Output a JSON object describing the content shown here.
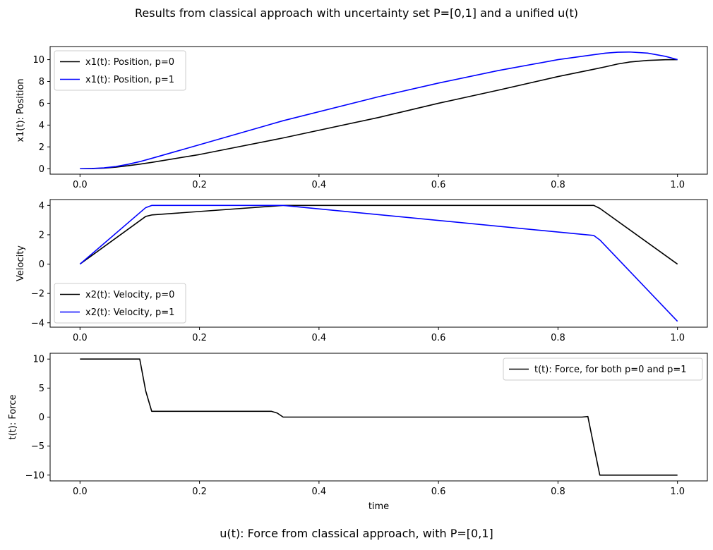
{
  "figure": {
    "title": "Results from classical approach with uncertainty set P=[0,1] and a unified u(t)",
    "subtitle": "u(t): Force from classical approach, with P=[0,1]"
  },
  "chart_data": [
    {
      "type": "line",
      "ylabel": "x1(t): Position",
      "xlabel": "",
      "xlim": [
        -0.05,
        1.05
      ],
      "ylim": [
        -0.5,
        11.2
      ],
      "xticks": [
        "0.0",
        "0.2",
        "0.4",
        "0.6",
        "0.8",
        "1.0"
      ],
      "yticks": [
        "0",
        "2",
        "4",
        "6",
        "8",
        "10"
      ],
      "legend_position": "upper-left",
      "series": [
        {
          "name": "x1(t): Position, p=0",
          "color": "#000000",
          "x": [
            0,
            0.02,
            0.04,
            0.06,
            0.08,
            0.1,
            0.12,
            0.2,
            0.34,
            0.5,
            0.6,
            0.7,
            0.8,
            0.86,
            0.88,
            0.9,
            0.92,
            0.95,
            0.98,
            1.0
          ],
          "y": [
            0,
            0.01,
            0.05,
            0.14,
            0.27,
            0.42,
            0.58,
            1.3,
            2.82,
            4.7,
            6.0,
            7.2,
            8.45,
            9.12,
            9.35,
            9.6,
            9.78,
            9.93,
            9.99,
            10.0
          ]
        },
        {
          "name": "x1(t): Position, p=1",
          "color": "#0000ff",
          "x": [
            0,
            0.02,
            0.04,
            0.06,
            0.08,
            0.1,
            0.12,
            0.2,
            0.34,
            0.5,
            0.6,
            0.7,
            0.8,
            0.86,
            0.88,
            0.9,
            0.92,
            0.95,
            0.98,
            1.0
          ],
          "y": [
            0,
            0.02,
            0.08,
            0.2,
            0.4,
            0.65,
            0.95,
            2.2,
            4.4,
            6.6,
            7.85,
            9.0,
            10.0,
            10.45,
            10.6,
            10.68,
            10.7,
            10.6,
            10.3,
            10.0
          ]
        }
      ]
    },
    {
      "type": "line",
      "ylabel": "Velocity",
      "xlabel": "",
      "xlim": [
        -0.05,
        1.05
      ],
      "ylim": [
        -4.3,
        4.4
      ],
      "xticks": [
        "0.0",
        "0.2",
        "0.4",
        "0.6",
        "0.8",
        "1.0"
      ],
      "yticks": [
        "-4",
        "-2",
        "0",
        "2",
        "4"
      ],
      "legend_position": "lower-left",
      "series": [
        {
          "name": "x2(t): Velocity, p=0",
          "color": "#000000",
          "x": [
            0,
            0.11,
            0.12,
            0.34,
            0.86,
            0.87,
            1.0
          ],
          "y": [
            0,
            3.25,
            3.35,
            4.0,
            4.0,
            3.8,
            0
          ]
        },
        {
          "name": "x2(t): Velocity, p=1",
          "color": "#0000ff",
          "x": [
            0,
            0.11,
            0.12,
            0.34,
            0.86,
            0.87,
            1.0
          ],
          "y": [
            0,
            3.85,
            4.0,
            4.0,
            1.95,
            1.65,
            -3.9
          ]
        }
      ]
    },
    {
      "type": "line",
      "ylabel": "t(t): Force",
      "xlabel": "time",
      "xlim": [
        -0.05,
        1.05
      ],
      "ylim": [
        -11.0,
        11.0
      ],
      "xticks": [
        "0.0",
        "0.2",
        "0.4",
        "0.6",
        "0.8",
        "1.0"
      ],
      "yticks": [
        "10",
        "5",
        "0",
        "-5",
        "-10"
      ],
      "legend_position": "upper-right",
      "series": [
        {
          "name": "t(t): Force, for both p=0 and p=1",
          "color": "#000000",
          "x": [
            0,
            0.1,
            0.11,
            0.12,
            0.32,
            0.33,
            0.34,
            0.84,
            0.85,
            0.86,
            0.87,
            1.0
          ],
          "y": [
            10,
            10,
            4.5,
            1.0,
            1.0,
            0.7,
            0,
            0,
            0.1,
            -5,
            -10,
            -10
          ]
        }
      ]
    }
  ]
}
